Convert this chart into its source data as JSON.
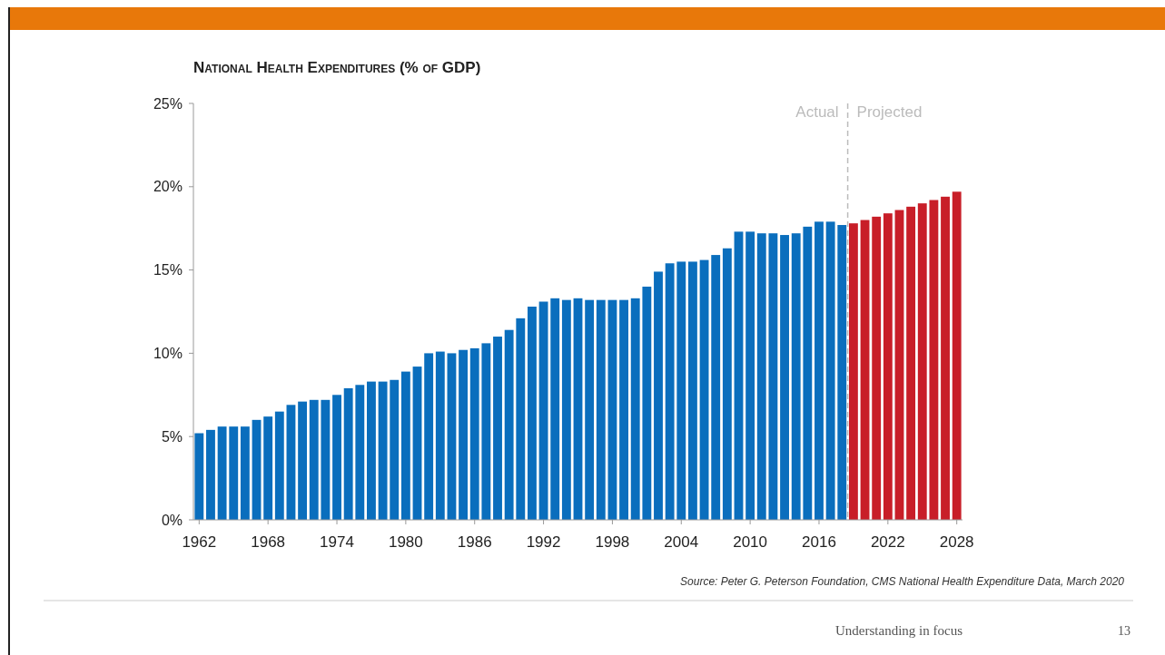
{
  "chart_data": {
    "type": "bar",
    "title": "National Health Expenditures (% of GDP)",
    "xlim": [
      1961.5,
      2028.5
    ],
    "xticks": [
      1962,
      1968,
      1974,
      1980,
      1986,
      1992,
      1998,
      2004,
      2010,
      2016,
      2022,
      2028
    ],
    "ylim": [
      0,
      25
    ],
    "yticks": [
      {
        "value": 0,
        "label": "0%"
      },
      {
        "value": 5,
        "label": "5%"
      },
      {
        "value": 10,
        "label": "10%"
      },
      {
        "value": 15,
        "label": "15%"
      },
      {
        "value": 20,
        "label": "20%"
      },
      {
        "value": 25,
        "label": "25%"
      }
    ],
    "grid": false,
    "legend": false,
    "series": [
      {
        "color": "#0a6ebd",
        "x": [
          1962,
          1963,
          1964,
          1965,
          1966,
          1967,
          1968,
          1969,
          1970,
          1971,
          1972,
          1973,
          1974,
          1975,
          1976,
          1977,
          1978,
          1979,
          1980,
          1981,
          1982,
          1983,
          1984,
          1985,
          1986,
          1987,
          1988,
          1989,
          1990,
          1991,
          1992,
          1993,
          1994,
          1995,
          1996,
          1997,
          1998,
          1999,
          2000,
          2001,
          2002,
          2003,
          2004,
          2005,
          2006,
          2007,
          2008,
          2009,
          2010,
          2011,
          2012,
          2013,
          2014,
          2015,
          2016,
          2017,
          2018
        ],
        "values": [
          5.2,
          5.4,
          5.6,
          5.6,
          5.6,
          6.0,
          6.2,
          6.5,
          6.9,
          7.1,
          7.2,
          7.2,
          7.5,
          7.9,
          8.1,
          8.3,
          8.3,
          8.4,
          8.9,
          9.2,
          10.0,
          10.1,
          10.0,
          10.2,
          10.3,
          10.6,
          11.0,
          11.4,
          12.1,
          12.8,
          13.1,
          13.3,
          13.2,
          13.3,
          13.2,
          13.2,
          13.2,
          13.2,
          13.3,
          14.0,
          14.9,
          15.4,
          15.5,
          15.5,
          15.6,
          15.9,
          16.3,
          17.3,
          17.3,
          17.2,
          17.2,
          17.1,
          17.2,
          17.6,
          17.9,
          17.9,
          17.7
        ]
      },
      {
        "color": "#c81e28",
        "x": [
          2019,
          2020,
          2021,
          2022,
          2023,
          2024,
          2025,
          2026,
          2027,
          2028
        ],
        "values": [
          17.8,
          18.0,
          18.2,
          18.4,
          18.6,
          18.8,
          19.0,
          19.2,
          19.4,
          19.7
        ]
      }
    ],
    "ref_lines": [
      {
        "axis": "x",
        "value": 2018.5,
        "color": "#bbbbbb",
        "line_style": "dashed"
      }
    ],
    "annotations": [
      "Actual",
      "Projected",
      "Source: Peter G. Peterson Foundation, CMS National Health Expenditure Data, March 2020",
      "Understanding in focus",
      "13"
    ]
  }
}
